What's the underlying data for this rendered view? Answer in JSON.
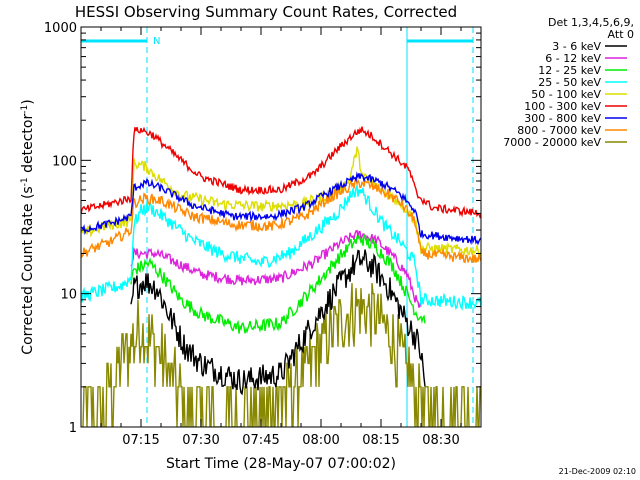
{
  "chart_data": {
    "type": "line",
    "title": "HESSI Observing Summary Count Rates, Corrected",
    "xlabel": "Start Time (28-May-07 07:00:02)",
    "ylabel_main": "Corrected Count Rate (s",
    "ylabel_sup1": "-1",
    "ylabel_mid": " detector",
    "ylabel_sup2": "-1",
    "ylabel_end": ")",
    "y_scale": "log",
    "ylim": [
      1,
      1000
    ],
    "xlim_minutes": [
      0,
      100
    ],
    "x_ticks": [
      {
        "m": 15,
        "label": "07:15"
      },
      {
        "m": 30,
        "label": "07:30"
      },
      {
        "m": 45,
        "label": "07:45"
      },
      {
        "m": 60,
        "label": "08:00"
      },
      {
        "m": 75,
        "label": "08:15"
      },
      {
        "m": 90,
        "label": "08:30"
      }
    ],
    "y_ticks": [
      {
        "v": 1,
        "label": "1"
      },
      {
        "v": 10,
        "label": "10"
      },
      {
        "v": 100,
        "label": "100"
      },
      {
        "v": 1000,
        "label": "1000"
      }
    ],
    "legend_header": [
      "Det 1,3,4,5,6,9,",
      "Att 0"
    ],
    "legend_placement": "right",
    "annotation_n": "N",
    "night_bars": [
      [
        0,
        16.5
      ],
      [
        81.5,
        98
      ]
    ],
    "dashed_markers": [
      16.5,
      98
    ],
    "solid_markers": [
      81.5
    ],
    "footer": "21-Dec-2009 02:10",
    "series": [
      {
        "name": "3 - 6 keV",
        "color": "#000000",
        "points": [
          [
            12.5,
            7
          ],
          [
            13.2,
            11
          ],
          [
            16,
            12.5
          ],
          [
            19,
            11
          ],
          [
            22,
            7
          ],
          [
            26,
            4
          ],
          [
            30,
            3
          ],
          [
            40,
            2.2
          ],
          [
            50,
            2.5
          ],
          [
            58,
            6
          ],
          [
            64,
            11
          ],
          [
            68,
            16
          ],
          [
            70,
            18
          ],
          [
            73,
            16
          ],
          [
            77,
            11
          ],
          [
            81,
            6.5
          ],
          [
            84,
            4.5
          ],
          [
            85,
            3.5
          ],
          [
            86,
            2
          ]
        ],
        "noise": 0.1
      },
      {
        "name": "6 - 12 keV",
        "color": "#dd22dd",
        "points": [
          [
            12.5,
            17
          ],
          [
            13.2,
            20
          ],
          [
            19,
            20
          ],
          [
            24,
            17
          ],
          [
            30,
            14
          ],
          [
            40,
            12.5
          ],
          [
            50,
            13
          ],
          [
            58,
            17
          ],
          [
            64,
            23
          ],
          [
            68,
            27
          ],
          [
            70,
            28
          ],
          [
            74,
            25
          ],
          [
            78,
            19
          ],
          [
            81.5,
            14
          ],
          [
            84,
            8.5
          ],
          [
            85,
            7.5
          ]
        ],
        "noise": 0.04
      },
      {
        "name": "12 - 25 keV",
        "color": "#00ee00",
        "points": [
          [
            12.5,
            12
          ],
          [
            13.2,
            15
          ],
          [
            17,
            17
          ],
          [
            20,
            14
          ],
          [
            25,
            9
          ],
          [
            30,
            7
          ],
          [
            40,
            5.5
          ],
          [
            50,
            6
          ],
          [
            58,
            11
          ],
          [
            64,
            18
          ],
          [
            68,
            24
          ],
          [
            70,
            26
          ],
          [
            74,
            22
          ],
          [
            78,
            16
          ],
          [
            81.5,
            10
          ],
          [
            84,
            7
          ],
          [
            86,
            6.5
          ]
        ],
        "noise": 0.05
      },
      {
        "name": "25 - 50 keV",
        "color": "#00ffff",
        "points": [
          [
            0,
            9.5
          ],
          [
            5,
            10.5
          ],
          [
            10,
            11.5
          ],
          [
            12.5,
            13
          ],
          [
            13.2,
            33
          ],
          [
            15,
            42
          ],
          [
            17,
            45
          ],
          [
            22,
            35
          ],
          [
            28,
            25
          ],
          [
            35,
            20
          ],
          [
            45,
            17
          ],
          [
            52,
            20
          ],
          [
            58,
            28
          ],
          [
            64,
            40
          ],
          [
            68,
            58
          ],
          [
            70,
            60
          ],
          [
            72,
            48
          ],
          [
            76,
            32
          ],
          [
            80,
            24
          ],
          [
            83.5,
            17
          ],
          [
            85,
            9
          ],
          [
            100,
            8.5
          ]
        ],
        "noise": 0.05
      },
      {
        "name": "50 - 100 keV",
        "color": "#dddd00",
        "points": [
          [
            0,
            28
          ],
          [
            6,
            32
          ],
          [
            12.5,
            35
          ],
          [
            13.2,
            95
          ],
          [
            16,
            90
          ],
          [
            19,
            75
          ],
          [
            25,
            55
          ],
          [
            35,
            47
          ],
          [
            45,
            45
          ],
          [
            55,
            47
          ],
          [
            62,
            55
          ],
          [
            67,
            70
          ],
          [
            69,
            120
          ],
          [
            70.5,
            75
          ],
          [
            75,
            60
          ],
          [
            80,
            48
          ],
          [
            83.5,
            35
          ],
          [
            85,
            22
          ],
          [
            100,
            21
          ]
        ],
        "noise": 0.04
      },
      {
        "name": "100 - 300 keV",
        "color": "#ee0000",
        "points": [
          [
            0,
            42
          ],
          [
            8,
            48
          ],
          [
            12.5,
            52
          ],
          [
            13.2,
            165
          ],
          [
            15,
            170
          ],
          [
            18,
            155
          ],
          [
            25,
            100
          ],
          [
            30,
            75
          ],
          [
            40,
            60
          ],
          [
            50,
            60
          ],
          [
            58,
            78
          ],
          [
            64,
            120
          ],
          [
            68,
            155
          ],
          [
            70,
            170
          ],
          [
            73,
            150
          ],
          [
            78,
            110
          ],
          [
            82,
            85
          ],
          [
            84,
            55
          ],
          [
            88,
            44
          ],
          [
            100,
            40
          ]
        ],
        "noise": 0.03
      },
      {
        "name": "300 - 800 keV",
        "color": "#0000ee",
        "points": [
          [
            0,
            30
          ],
          [
            8,
            34
          ],
          [
            12.5,
            38
          ],
          [
            13.2,
            62
          ],
          [
            16,
            68
          ],
          [
            20,
            62
          ],
          [
            28,
            46
          ],
          [
            38,
            38
          ],
          [
            48,
            38
          ],
          [
            56,
            45
          ],
          [
            62,
            58
          ],
          [
            68,
            72
          ],
          [
            70,
            76
          ],
          [
            75,
            68
          ],
          [
            80,
            55
          ],
          [
            83.5,
            42
          ],
          [
            85,
            28
          ],
          [
            100,
            25
          ]
        ],
        "noise": 0.03
      },
      {
        "name": "800 - 7000 keV",
        "color": "#ff8800",
        "points": [
          [
            0,
            20
          ],
          [
            8,
            25
          ],
          [
            12.5,
            30
          ],
          [
            13.2,
            48
          ],
          [
            16,
            52
          ],
          [
            20,
            50
          ],
          [
            28,
            38
          ],
          [
            38,
            33
          ],
          [
            48,
            32
          ],
          [
            56,
            38
          ],
          [
            62,
            52
          ],
          [
            68,
            65
          ],
          [
            70,
            68
          ],
          [
            75,
            60
          ],
          [
            80,
            48
          ],
          [
            83.5,
            35
          ],
          [
            85,
            20
          ],
          [
            100,
            18
          ]
        ],
        "noise": 0.04
      },
      {
        "name": "7000 - 20000 keV",
        "color": "#888800",
        "points": [
          [
            0,
            1.2
          ],
          [
            6,
            1.5
          ],
          [
            10,
            3
          ],
          [
            13,
            4.5
          ],
          [
            15,
            5.5
          ],
          [
            19,
            4
          ],
          [
            23,
            2.2
          ],
          [
            26,
            1.4
          ],
          [
            35,
            1.2
          ],
          [
            45,
            1.3
          ],
          [
            55,
            2.2
          ],
          [
            62,
            5
          ],
          [
            68,
            7.5
          ],
          [
            70,
            8
          ],
          [
            74,
            6.5
          ],
          [
            78,
            4.5
          ],
          [
            82,
            2.5
          ],
          [
            86,
            1.4
          ],
          [
            100,
            1.2
          ]
        ],
        "noise": 0.25,
        "step": true
      }
    ]
  }
}
